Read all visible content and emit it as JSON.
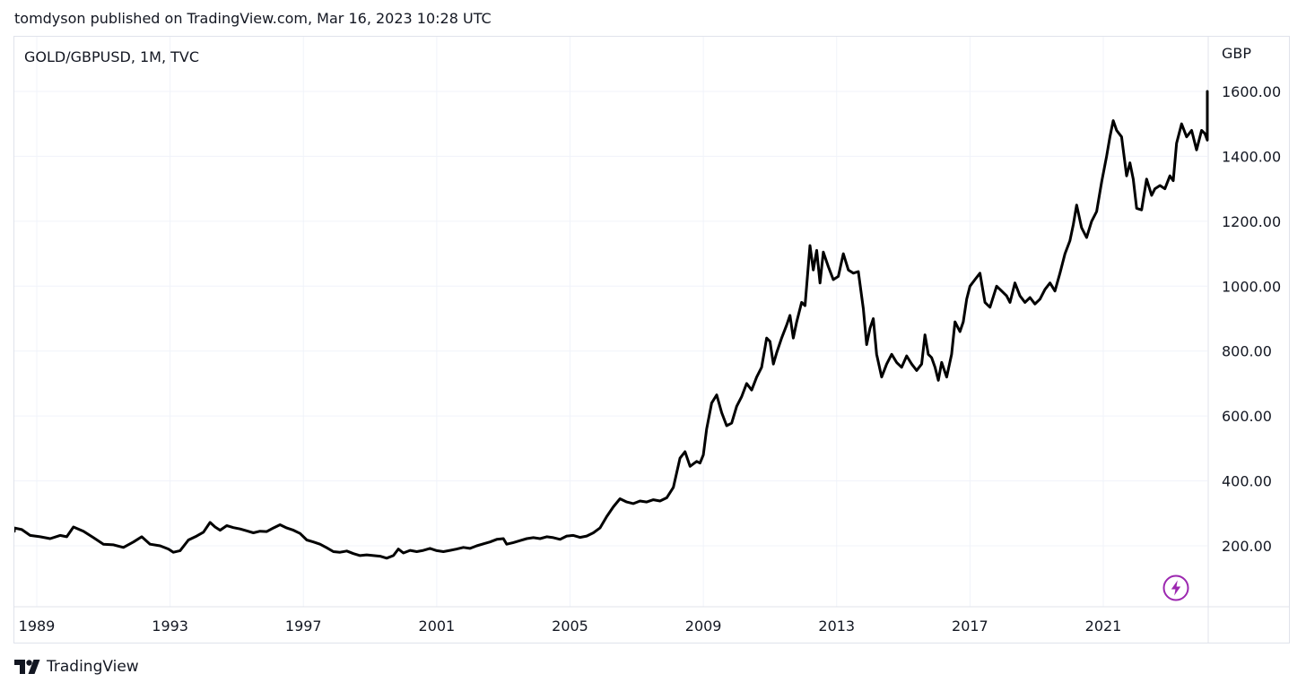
{
  "header": {
    "publish_text": "tomdyson published on TradingView.com, Mar 16, 2023 10:28 UTC"
  },
  "symbol": {
    "label": "GOLD/GBPUSD, 1M, TVC"
  },
  "brand": {
    "name": "TradingView"
  },
  "colors": {
    "line": "#000000",
    "grid": "#f0f3fa",
    "border": "#e0e3eb",
    "text": "#131722",
    "flash_icon": "#9c27b0"
  },
  "icons": {
    "logo": "tradingview-logo-icon",
    "flash": "lightning-icon"
  },
  "chart_data": {
    "type": "line",
    "title": "GOLD/GBPUSD, 1M, TVC",
    "ylabel": "GBP",
    "xlabel": "",
    "ylim": [
      0,
      1750
    ],
    "xlim": [
      1988.5,
      2023.8
    ],
    "y_ticks": [
      200,
      400,
      600,
      800,
      1000,
      1200,
      1400,
      1600
    ],
    "y_tick_labels": [
      "200.00",
      "400.00",
      "600.00",
      "800.00",
      "1000.00",
      "1200.00",
      "1400.00",
      "1600.00"
    ],
    "x_ticks": [
      1989,
      1993,
      1997,
      2001,
      2005,
      2009,
      2013,
      2017,
      2021
    ],
    "x_tick_labels": [
      "1989",
      "1993",
      "1997",
      "2001",
      "2005",
      "2009",
      "2013",
      "2017",
      "2021"
    ],
    "grid": true,
    "series": [
      {
        "name": "",
        "points": [
          [
            1988.05,
            245
          ],
          [
            1988.3,
            255
          ],
          [
            1988.55,
            250
          ],
          [
            1988.8,
            232
          ],
          [
            1989.1,
            228
          ],
          [
            1989.4,
            222
          ],
          [
            1989.7,
            232
          ],
          [
            1989.9,
            228
          ],
          [
            1990.1,
            258
          ],
          [
            1990.4,
            245
          ],
          [
            1990.7,
            225
          ],
          [
            1991.0,
            205
          ],
          [
            1991.3,
            203
          ],
          [
            1991.6,
            195
          ],
          [
            1991.9,
            212
          ],
          [
            1992.15,
            228
          ],
          [
            1992.4,
            205
          ],
          [
            1992.7,
            200
          ],
          [
            1992.95,
            190
          ],
          [
            1993.1,
            180
          ],
          [
            1993.3,
            185
          ],
          [
            1993.55,
            218
          ],
          [
            1993.8,
            230
          ],
          [
            1994.0,
            242
          ],
          [
            1994.2,
            272
          ],
          [
            1994.35,
            258
          ],
          [
            1994.5,
            248
          ],
          [
            1994.7,
            262
          ],
          [
            1994.9,
            256
          ],
          [
            1995.1,
            252
          ],
          [
            1995.3,
            246
          ],
          [
            1995.5,
            240
          ],
          [
            1995.7,
            245
          ],
          [
            1995.9,
            244
          ],
          [
            1996.1,
            255
          ],
          [
            1996.3,
            265
          ],
          [
            1996.5,
            255
          ],
          [
            1996.7,
            248
          ],
          [
            1996.9,
            238
          ],
          [
            1997.1,
            218
          ],
          [
            1997.3,
            212
          ],
          [
            1997.5,
            205
          ],
          [
            1997.7,
            194
          ],
          [
            1997.9,
            182
          ],
          [
            1998.1,
            180
          ],
          [
            1998.3,
            184
          ],
          [
            1998.5,
            176
          ],
          [
            1998.7,
            170
          ],
          [
            1998.9,
            172
          ],
          [
            1999.1,
            170
          ],
          [
            1999.3,
            168
          ],
          [
            1999.5,
            162
          ],
          [
            1999.7,
            170
          ],
          [
            1999.85,
            190
          ],
          [
            2000.0,
            178
          ],
          [
            2000.2,
            186
          ],
          [
            2000.4,
            182
          ],
          [
            2000.6,
            186
          ],
          [
            2000.8,
            192
          ],
          [
            2001.0,
            185
          ],
          [
            2001.2,
            182
          ],
          [
            2001.4,
            186
          ],
          [
            2001.6,
            190
          ],
          [
            2001.8,
            195
          ],
          [
            2002.0,
            192
          ],
          [
            2002.2,
            200
          ],
          [
            2002.4,
            206
          ],
          [
            2002.6,
            212
          ],
          [
            2002.8,
            220
          ],
          [
            2003.0,
            222
          ],
          [
            2003.1,
            205
          ],
          [
            2003.3,
            210
          ],
          [
            2003.5,
            216
          ],
          [
            2003.7,
            222
          ],
          [
            2003.9,
            225
          ],
          [
            2004.1,
            222
          ],
          [
            2004.3,
            228
          ],
          [
            2004.5,
            225
          ],
          [
            2004.7,
            220
          ],
          [
            2004.9,
            230
          ],
          [
            2005.1,
            232
          ],
          [
            2005.3,
            226
          ],
          [
            2005.5,
            230
          ],
          [
            2005.7,
            240
          ],
          [
            2005.9,
            255
          ],
          [
            2006.1,
            290
          ],
          [
            2006.3,
            320
          ],
          [
            2006.5,
            345
          ],
          [
            2006.7,
            335
          ],
          [
            2006.9,
            330
          ],
          [
            2007.1,
            338
          ],
          [
            2007.3,
            335
          ],
          [
            2007.5,
            342
          ],
          [
            2007.7,
            338
          ],
          [
            2007.9,
            348
          ],
          [
            2008.1,
            380
          ],
          [
            2008.3,
            470
          ],
          [
            2008.45,
            490
          ],
          [
            2008.6,
            445
          ],
          [
            2008.8,
            460
          ],
          [
            2008.9,
            455
          ],
          [
            2009.0,
            480
          ],
          [
            2009.1,
            560
          ],
          [
            2009.25,
            640
          ],
          [
            2009.4,
            665
          ],
          [
            2009.55,
            610
          ],
          [
            2009.7,
            570
          ],
          [
            2009.85,
            578
          ],
          [
            2010.0,
            630
          ],
          [
            2010.15,
            660
          ],
          [
            2010.3,
            700
          ],
          [
            2010.45,
            680
          ],
          [
            2010.6,
            720
          ],
          [
            2010.75,
            750
          ],
          [
            2010.9,
            840
          ],
          [
            2011.0,
            830
          ],
          [
            2011.1,
            760
          ],
          [
            2011.2,
            795
          ],
          [
            2011.35,
            840
          ],
          [
            2011.5,
            880
          ],
          [
            2011.6,
            910
          ],
          [
            2011.7,
            840
          ],
          [
            2011.8,
            890
          ],
          [
            2011.95,
            950
          ],
          [
            2012.05,
            940
          ],
          [
            2012.2,
            1125
          ],
          [
            2012.3,
            1050
          ],
          [
            2012.4,
            1110
          ],
          [
            2012.5,
            1010
          ],
          [
            2012.6,
            1105
          ],
          [
            2012.75,
            1060
          ],
          [
            2012.9,
            1020
          ],
          [
            2013.05,
            1030
          ],
          [
            2013.2,
            1100
          ],
          [
            2013.35,
            1050
          ],
          [
            2013.5,
            1040
          ],
          [
            2013.65,
            1045
          ],
          [
            2013.8,
            930
          ],
          [
            2013.9,
            820
          ],
          [
            2014.0,
            870
          ],
          [
            2014.1,
            900
          ],
          [
            2014.2,
            790
          ],
          [
            2014.35,
            720
          ],
          [
            2014.5,
            760
          ],
          [
            2014.65,
            790
          ],
          [
            2014.8,
            765
          ],
          [
            2014.95,
            750
          ],
          [
            2015.1,
            785
          ],
          [
            2015.25,
            760
          ],
          [
            2015.4,
            740
          ],
          [
            2015.55,
            760
          ],
          [
            2015.65,
            850
          ],
          [
            2015.75,
            790
          ],
          [
            2015.85,
            780
          ],
          [
            2015.95,
            750
          ],
          [
            2016.05,
            710
          ],
          [
            2016.15,
            765
          ],
          [
            2016.3,
            720
          ],
          [
            2016.45,
            790
          ],
          [
            2016.55,
            890
          ],
          [
            2016.7,
            860
          ],
          [
            2016.8,
            890
          ],
          [
            2016.9,
            960
          ],
          [
            2017.0,
            1000
          ],
          [
            2017.15,
            1020
          ],
          [
            2017.3,
            1040
          ],
          [
            2017.45,
            950
          ],
          [
            2017.6,
            935
          ],
          [
            2017.8,
            1000
          ],
          [
            2017.95,
            985
          ],
          [
            2018.1,
            970
          ],
          [
            2018.2,
            950
          ],
          [
            2018.35,
            1010
          ],
          [
            2018.5,
            970
          ],
          [
            2018.65,
            950
          ],
          [
            2018.8,
            965
          ],
          [
            2018.95,
            945
          ],
          [
            2019.1,
            960
          ],
          [
            2019.25,
            990
          ],
          [
            2019.4,
            1010
          ],
          [
            2019.55,
            985
          ],
          [
            2019.7,
            1040
          ],
          [
            2019.85,
            1100
          ],
          [
            2020.0,
            1140
          ],
          [
            2020.1,
            1190
          ],
          [
            2020.2,
            1250
          ],
          [
            2020.35,
            1180
          ],
          [
            2020.5,
            1150
          ],
          [
            2020.65,
            1200
          ],
          [
            2020.8,
            1230
          ],
          [
            2020.95,
            1320
          ],
          [
            2021.1,
            1400
          ],
          [
            2021.2,
            1460
          ],
          [
            2021.3,
            1510
          ],
          [
            2021.4,
            1480
          ],
          [
            2021.55,
            1460
          ],
          [
            2021.7,
            1340
          ],
          [
            2021.8,
            1380
          ],
          [
            2021.9,
            1330
          ],
          [
            2022.0,
            1240
          ],
          [
            2022.15,
            1235
          ],
          [
            2022.3,
            1330
          ],
          [
            2022.45,
            1280
          ],
          [
            2022.55,
            1300
          ],
          [
            2022.7,
            1310
          ],
          [
            2022.85,
            1300
          ],
          [
            2023.0,
            1340
          ],
          [
            2023.1,
            1325
          ],
          [
            2023.2,
            1440
          ],
          [
            2023.35,
            1500
          ],
          [
            2023.5,
            1460
          ],
          [
            2023.65,
            1480
          ],
          [
            2023.8,
            1420
          ],
          [
            2023.95,
            1480
          ],
          [
            2024.05,
            1470
          ],
          [
            2024.2,
            1450
          ],
          [
            2024.3,
            1530
          ],
          [
            2024.4,
            1590
          ],
          [
            2024.5,
            1520
          ],
          [
            2024.6,
            1600
          ]
        ]
      }
    ]
  }
}
